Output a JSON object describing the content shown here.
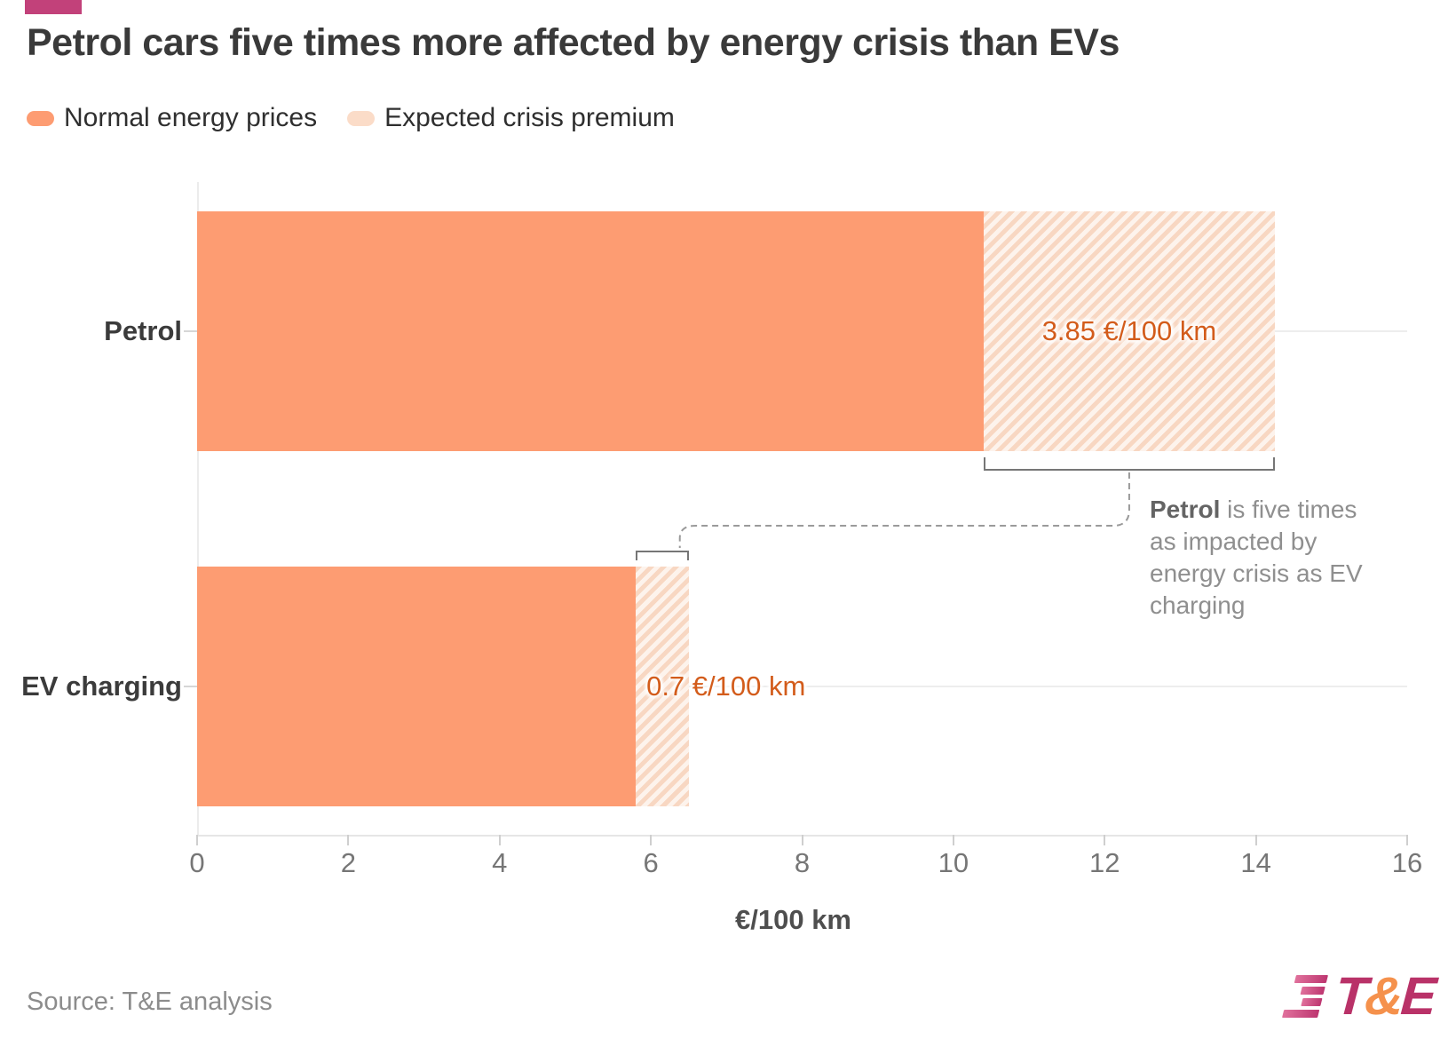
{
  "header": {
    "title": "Petrol cars five times more affected by energy crisis than EVs"
  },
  "legend": [
    {
      "label": "Normal energy prices",
      "color": "#fd9c72",
      "style": "solid"
    },
    {
      "label": "Expected crisis premium",
      "color": "#fbdcc8",
      "style": "light"
    }
  ],
  "chart_data": {
    "type": "bar",
    "orientation": "horizontal",
    "title": "Petrol cars five times more affected by energy crisis than EVs",
    "categories": [
      "Petrol",
      "EV charging"
    ],
    "series": [
      {
        "name": "Normal energy prices",
        "values": [
          10.4,
          5.8
        ]
      },
      {
        "name": "Expected crisis premium",
        "values": [
          3.85,
          0.7
        ]
      }
    ],
    "totals": [
      14.25,
      6.5
    ],
    "segment_labels": [
      "3.85 €/100 km",
      "0.7 €/100 km"
    ],
    "xlabel": "€/100 km",
    "xlim": [
      0,
      16
    ],
    "xticks": [
      0,
      2,
      4,
      6,
      8,
      10,
      12,
      14,
      16
    ],
    "grid": "horizontal gridline at each category center",
    "legend_position": "top-left",
    "annotation": "Petrol is five times as impacted by energy crisis as EV charging"
  },
  "annotation": {
    "bold": "Petrol",
    "rest": " is five times as impacted by energy crisis as EV charging"
  },
  "footer": {
    "source": "Source: T&E analysis"
  },
  "logo": {
    "t": "T",
    "amp": "&",
    "e": "E"
  },
  "colors": {
    "bar_solid": "#fd9c72",
    "bar_hatch_stripe": "#f8d7c2",
    "bar_hatch_bg": "#fdf3ec",
    "value_label": "#d35c1b",
    "brand_mark": "#c2417a",
    "logo_magenta": "#b93268",
    "logo_orange": "#f5914c",
    "annotation_gray": "#8f8f8f",
    "axis_gray": "#767676"
  }
}
